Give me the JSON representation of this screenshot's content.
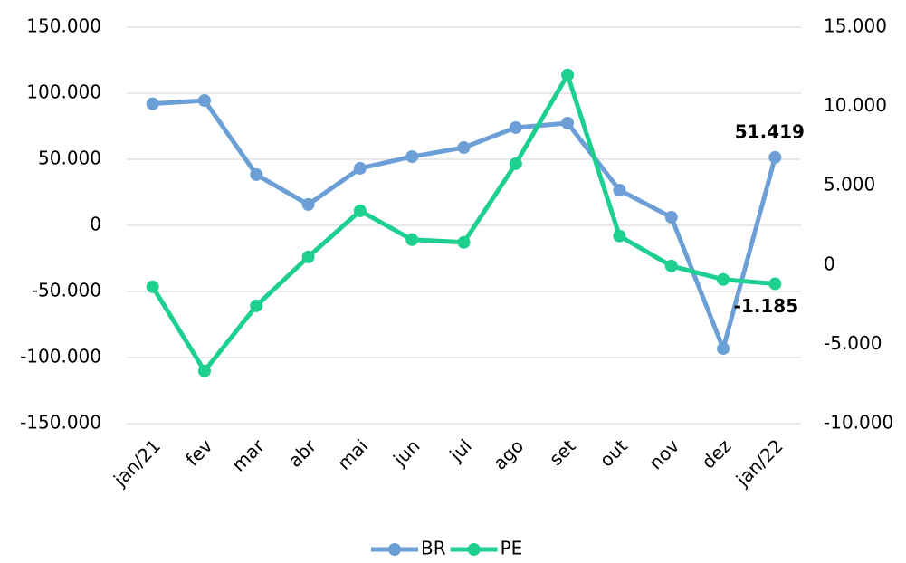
{
  "chart_data": {
    "type": "line",
    "categories": [
      "jan/21",
      "fev",
      "mar",
      "abr",
      "mai",
      "jun",
      "jul",
      "ago",
      "set",
      "out",
      "nov",
      "dez",
      "jan/22"
    ],
    "series": [
      {
        "name": "BR",
        "color": "#6b9fd6",
        "values": [
          92000,
          94500,
          38400,
          15800,
          43200,
          52000,
          58900,
          74000,
          77400,
          26700,
          6200,
          -93200,
          51419
        ],
        "value_labels": [
          null,
          null,
          null,
          null,
          null,
          null,
          null,
          null,
          null,
          null,
          null,
          null,
          "51.419"
        ]
      },
      {
        "name": "PE",
        "color": "#1dd08f",
        "axis": "y2",
        "values": [
          -1370,
          -6680,
          -2570,
          510,
          3420,
          1600,
          1430,
          6390,
          11990,
          1830,
          -60,
          -910,
          -1185
        ],
        "value_labels": [
          null,
          null,
          null,
          null,
          null,
          null,
          null,
          null,
          null,
          null,
          null,
          null,
          "-1.185"
        ]
      }
    ],
    "ylim": [
      -150000,
      150000
    ],
    "yticks": [
      {
        "value": -150000,
        "label": "-150.000"
      },
      {
        "value": -100000,
        "label": "-100.000"
      },
      {
        "value": -50000,
        "label": "-50.000"
      },
      0,
      {
        "value": 50000,
        "label": "50.000"
      },
      {
        "value": 100000,
        "label": "100.000"
      },
      {
        "value": 150000,
        "label": "150.000"
      }
    ],
    "y2lim": [
      -10000,
      15000
    ],
    "y2ticks": [
      {
        "value": -10000,
        "label": "-10.000"
      },
      {
        "value": -5000,
        "label": "-5.000"
      },
      0,
      {
        "value": 5000,
        "label": "5.000"
      },
      {
        "value": 10000,
        "label": "10.000"
      },
      {
        "value": 15000,
        "label": "15.000"
      }
    ],
    "grid": true,
    "legend": "bottom"
  }
}
